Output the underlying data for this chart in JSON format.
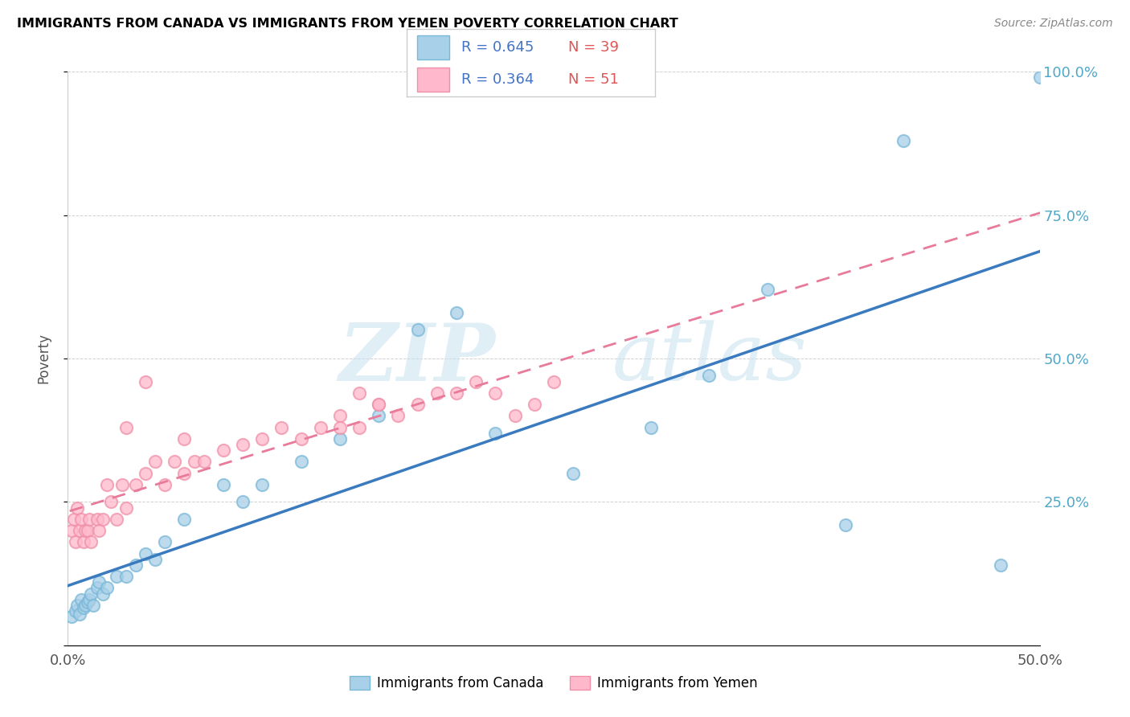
{
  "title": "IMMIGRANTS FROM CANADA VS IMMIGRANTS FROM YEMEN POVERTY CORRELATION CHART",
  "source": "Source: ZipAtlas.com",
  "ylabel": "Poverty",
  "xlim": [
    0,
    0.5
  ],
  "ylim": [
    0,
    1.0
  ],
  "canada_color": "#a8d0e8",
  "canada_edge": "#7ab8d8",
  "yemen_color": "#ffb8cc",
  "yemen_edge": "#f090a8",
  "trendline_canada_color": "#3a7abf",
  "trendline_yemen_color": "#e87a9a",
  "watermark_zip": "ZIP",
  "watermark_atlas": "atlas",
  "legend_R_canada": "R = 0.645",
  "legend_N_canada": "N = 39",
  "legend_R_yemen": "R = 0.364",
  "legend_N_yemen": "N = 51",
  "legend_text_color_R": "#4472c4",
  "legend_text_color_N": "#e05555",
  "canada_x": [
    0.002,
    0.004,
    0.005,
    0.006,
    0.007,
    0.008,
    0.009,
    0.01,
    0.011,
    0.012,
    0.013,
    0.015,
    0.016,
    0.018,
    0.02,
    0.025,
    0.03,
    0.035,
    0.04,
    0.045,
    0.05,
    0.06,
    0.08,
    0.09,
    0.1,
    0.12,
    0.14,
    0.16,
    0.18,
    0.2,
    0.22,
    0.26,
    0.3,
    0.33,
    0.36,
    0.4,
    0.43,
    0.48,
    0.5
  ],
  "canada_y": [
    0.05,
    0.06,
    0.07,
    0.055,
    0.08,
    0.065,
    0.07,
    0.075,
    0.08,
    0.09,
    0.07,
    0.1,
    0.11,
    0.09,
    0.1,
    0.12,
    0.12,
    0.14,
    0.16,
    0.15,
    0.18,
    0.22,
    0.28,
    0.25,
    0.28,
    0.32,
    0.36,
    0.4,
    0.55,
    0.58,
    0.37,
    0.3,
    0.38,
    0.47,
    0.62,
    0.21,
    0.88,
    0.14,
    0.99
  ],
  "yemen_x": [
    0.002,
    0.003,
    0.004,
    0.005,
    0.006,
    0.007,
    0.008,
    0.009,
    0.01,
    0.011,
    0.012,
    0.015,
    0.016,
    0.018,
    0.02,
    0.022,
    0.025,
    0.028,
    0.03,
    0.035,
    0.04,
    0.045,
    0.05,
    0.055,
    0.06,
    0.065,
    0.07,
    0.08,
    0.09,
    0.1,
    0.11,
    0.12,
    0.13,
    0.14,
    0.15,
    0.16,
    0.17,
    0.18,
    0.19,
    0.2,
    0.21,
    0.22,
    0.23,
    0.24,
    0.25,
    0.14,
    0.15,
    0.16,
    0.03,
    0.04,
    0.06
  ],
  "yemen_y": [
    0.2,
    0.22,
    0.18,
    0.24,
    0.2,
    0.22,
    0.18,
    0.2,
    0.2,
    0.22,
    0.18,
    0.22,
    0.2,
    0.22,
    0.28,
    0.25,
    0.22,
    0.28,
    0.24,
    0.28,
    0.3,
    0.32,
    0.28,
    0.32,
    0.3,
    0.32,
    0.32,
    0.34,
    0.35,
    0.36,
    0.38,
    0.36,
    0.38,
    0.4,
    0.38,
    0.42,
    0.4,
    0.42,
    0.44,
    0.44,
    0.46,
    0.44,
    0.4,
    0.42,
    0.46,
    0.38,
    0.44,
    0.42,
    0.38,
    0.46,
    0.36
  ]
}
